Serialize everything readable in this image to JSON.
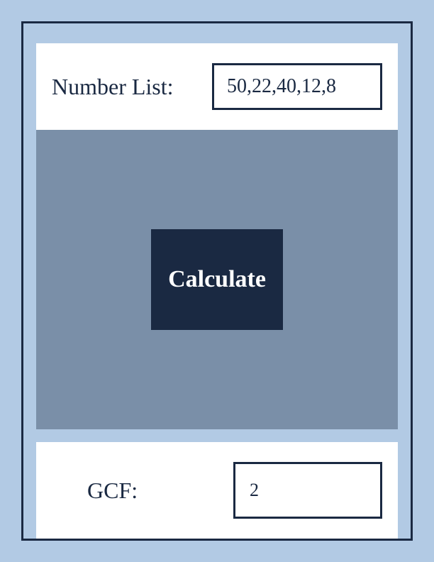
{
  "input": {
    "label": "Number List:",
    "value": "50,22,40,12,8"
  },
  "button": {
    "label": "Calculate"
  },
  "output": {
    "label": "GCF:",
    "value": "2"
  },
  "colors": {
    "outer_background": "#b2cae4",
    "border": "#1a2942",
    "middle_background": "#7a8fa8",
    "button_background": "#1a2942",
    "button_text": "#ffffff",
    "row_background": "#ffffff",
    "text": "#1a2942"
  }
}
